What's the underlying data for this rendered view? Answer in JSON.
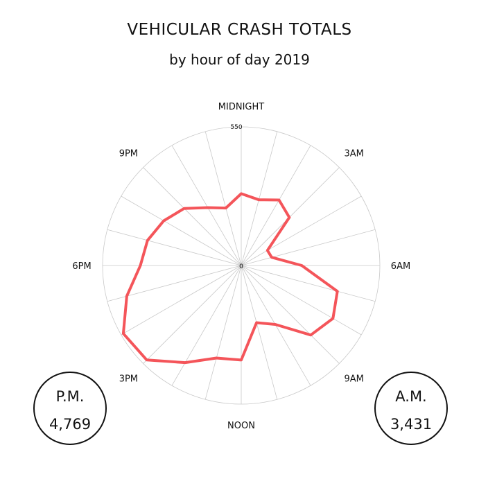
{
  "title": "VEHICULAR CRASH TOTALS",
  "subtitle": "by hour of day 2019",
  "badges": {
    "pm": {
      "label": "P.M.",
      "value": "4,769"
    },
    "am": {
      "label": "A.M.",
      "value": "3,431"
    }
  },
  "colors": {
    "series": "#f4555a",
    "grid": "#c8c8c8"
  },
  "chart_data": {
    "type": "line",
    "subtype": "radar",
    "title": "VEHICULAR CRASH TOTALS",
    "subtitle": "by hour of day 2019",
    "radial_range": [
      0,
      550
    ],
    "radial_tick_labels": [
      "0",
      "550"
    ],
    "hour_labels": [
      {
        "hour": 0,
        "label": "MIDNIGHT"
      },
      {
        "hour": 3,
        "label": "3AM"
      },
      {
        "hour": 6,
        "label": "6AM"
      },
      {
        "hour": 9,
        "label": "9AM"
      },
      {
        "hour": 12,
        "label": "NOON"
      },
      {
        "hour": 15,
        "label": "3PM"
      },
      {
        "hour": 18,
        "label": "6PM"
      },
      {
        "hour": 21,
        "label": "9PM"
      }
    ],
    "hours": [
      0,
      1,
      2,
      3,
      4,
      5,
      6,
      7,
      8,
      9,
      10,
      11,
      12,
      13,
      14,
      15,
      16,
      17,
      18,
      19,
      20,
      21,
      22,
      23
    ],
    "values": [
      285,
      270,
      300,
      270,
      120,
      125,
      240,
      395,
      420,
      390,
      270,
      235,
      375,
      380,
      445,
      530,
      540,
      470,
      400,
      385,
      355,
      320,
      265,
      236
    ],
    "grid": true
  }
}
